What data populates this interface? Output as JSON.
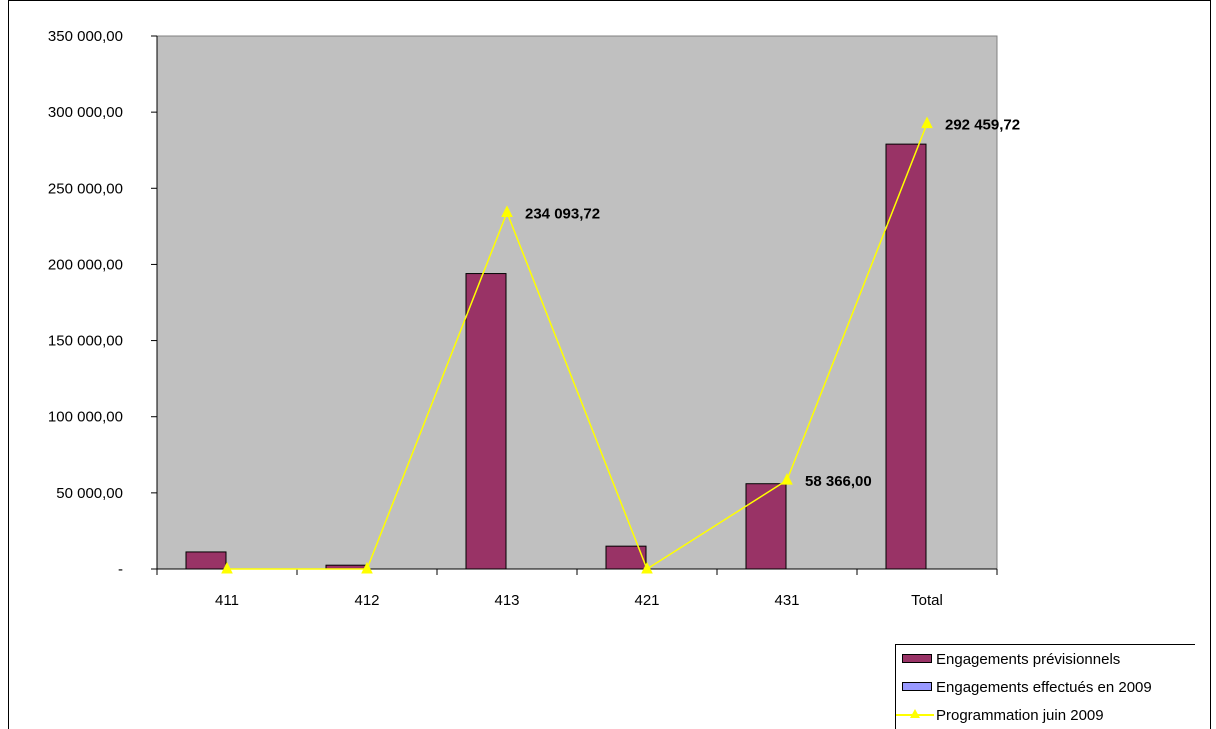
{
  "chart_data": {
    "type": "bar",
    "categories": [
      "411",
      "412",
      "413",
      "421",
      "431",
      "Total"
    ],
    "ylim": [
      0,
      350000
    ],
    "yticks": [
      0,
      50000,
      100000,
      150000,
      200000,
      250000,
      300000,
      350000
    ],
    "ytick_labels": [
      "-",
      "50 000,00",
      "100 000,00",
      "150 000,00",
      "200 000,00",
      "250 000,00",
      "300 000,00",
      "350 000,00"
    ],
    "plot_background": "#c0c0c0",
    "grid": false,
    "legend_position": "bottom-right",
    "series": [
      {
        "name": "Engagements prévisionnels",
        "kind": "bar",
        "color": "#993366",
        "values": [
          11200,
          2500,
          194000,
          15000,
          56000,
          279000
        ]
      },
      {
        "name": "Engagements effectués en 2009",
        "kind": "bar",
        "color": "#9999ff",
        "values": [
          0,
          0,
          0,
          0,
          0,
          0
        ]
      },
      {
        "name": "Programmation juin 2009",
        "kind": "line",
        "color": "#ffff00",
        "marker": "triangle",
        "values": [
          0,
          0,
          234093.72,
          0,
          58366.0,
          292459.72
        ],
        "data_labels": [
          "",
          "",
          "234 093,72",
          "",
          "58 366,00",
          "292 459,72"
        ]
      }
    ]
  }
}
